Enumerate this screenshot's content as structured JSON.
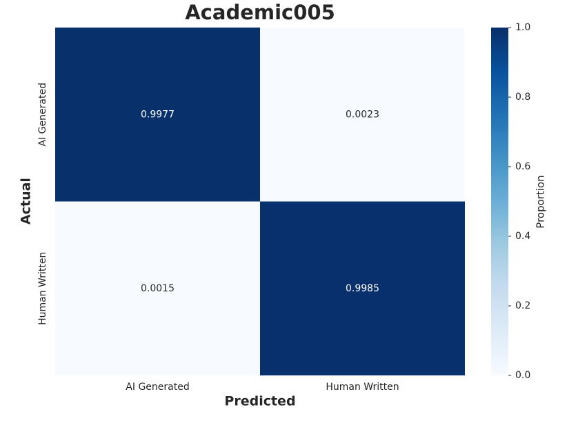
{
  "chart_data": {
    "type": "heatmap",
    "title": "Academic005",
    "x_label": "Predicted",
    "y_label": "Actual",
    "x_categories": [
      "AI Generated",
      "Human Written"
    ],
    "y_categories": [
      "AI Generated",
      "Human Written"
    ],
    "values": [
      [
        0.9977,
        0.0023
      ],
      [
        0.0015,
        0.9985
      ]
    ],
    "colormap": "Blues",
    "colorbar_label": "Proportion",
    "clim": [
      0,
      1
    ],
    "cticks": [
      {
        "value": 0,
        "label": "0.0"
      },
      0.2,
      0.4,
      0.6,
      0.8,
      {
        "value": 1,
        "label": "1.0"
      }
    ]
  }
}
